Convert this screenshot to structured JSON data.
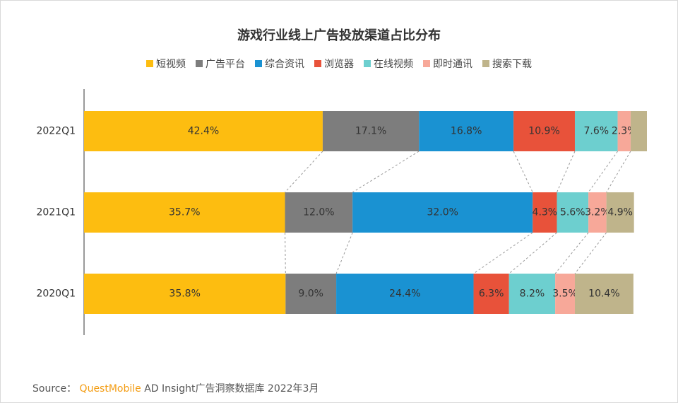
{
  "chart_data": {
    "type": "stacked-bar-horizontal",
    "title": "游戏行业线上广告投放渠道占比分布",
    "categories": [
      "2022Q1",
      "2021Q1",
      "2020Q1"
    ],
    "xlim": [
      0,
      100
    ],
    "series": [
      {
        "name": "短视频",
        "color": "#fdbd10",
        "values": [
          42.4,
          35.7,
          35.8
        ],
        "value_labels": [
          "42.4%",
          "35.7%",
          "35.8%"
        ]
      },
      {
        "name": "广告平台",
        "color": "#7d7d7d",
        "values": [
          17.1,
          12.0,
          9.0
        ],
        "value_labels": [
          "17.1%",
          "12.0%",
          "9.0%"
        ]
      },
      {
        "name": "综合资讯",
        "color": "#1a92d2",
        "values": [
          16.8,
          32.0,
          24.4
        ],
        "value_labels": [
          "16.8%",
          "32.0%",
          "24.4%"
        ]
      },
      {
        "name": "浏览器",
        "color": "#e8523a",
        "values": [
          10.9,
          4.3,
          6.3
        ],
        "value_labels": [
          "10.9%",
          "4.3%",
          "6.3%"
        ]
      },
      {
        "name": "在线视频",
        "color": "#6dcfcf",
        "values": [
          7.6,
          5.6,
          8.2
        ],
        "value_labels": [
          "7.6%",
          "5.6%",
          "8.2%"
        ]
      },
      {
        "name": "即时通讯",
        "color": "#f7a899",
        "values": [
          2.3,
          3.2,
          3.5
        ],
        "value_labels": [
          "2.3%",
          "3.2%",
          "3.5%"
        ]
      },
      {
        "name": "搜索下载",
        "color": "#bfb48b",
        "values": [
          2.9,
          4.9,
          10.4
        ],
        "value_labels": [
          null,
          "4.9%",
          "10.4%"
        ]
      }
    ]
  },
  "source": {
    "label": "Source：",
    "brand": "QuestMobile",
    "text": "AD Insight广告洞察数据库 2022年3月"
  }
}
